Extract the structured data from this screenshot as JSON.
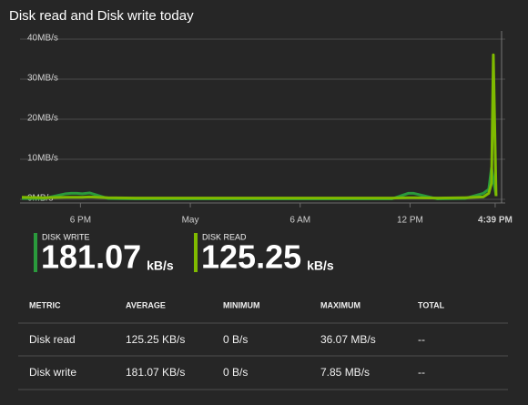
{
  "chart_data": {
    "type": "line",
    "title": "Disk read and Disk write today",
    "x": [
      14.8,
      16,
      17.2,
      17.5,
      17.8,
      18.1,
      18.5,
      19.5,
      21,
      24,
      27,
      30,
      33,
      35,
      35.9,
      36.2,
      37.5,
      39,
      40,
      40.3,
      40.45,
      40.55,
      40.7
    ],
    "series": [
      {
        "name": "Disk write",
        "color": "#2a9a3c",
        "values": [
          0.2,
          0.2,
          1.4,
          1.5,
          1.5,
          1.4,
          1.6,
          0.2,
          0.1,
          0.1,
          0.1,
          0.1,
          0.1,
          0.1,
          1.5,
          1.5,
          0.1,
          0.2,
          1.5,
          2.5,
          7.85,
          5,
          1
        ]
      },
      {
        "name": "Disk read",
        "color": "#7fba00",
        "values": [
          0.5,
          0.4,
          0.5,
          0.5,
          0.5,
          0.5,
          0.6,
          0.4,
          0.3,
          0.3,
          0.3,
          0.3,
          0.3,
          0.3,
          0.4,
          0.4,
          0.3,
          0.4,
          0.6,
          1.5,
          4,
          36.07,
          0.8
        ]
      }
    ],
    "xlim": [
      14.7,
      41.2
    ],
    "xticks": [
      {
        "value": 18,
        "label": "6 PM"
      },
      {
        "value": 24,
        "label": "May"
      },
      {
        "value": 30,
        "label": "6 AM"
      },
      {
        "value": 36,
        "label": "12 PM"
      },
      {
        "value": 40.65,
        "label": "4:39 PM"
      }
    ],
    "ylim": [
      0,
      40
    ],
    "yticks": [
      {
        "value": 0,
        "label": "0MB/s"
      },
      {
        "value": 10,
        "label": "10MB/s"
      },
      {
        "value": 20,
        "label": "20MB/s"
      },
      {
        "value": 30,
        "label": "30MB/s"
      },
      {
        "value": 40,
        "label": "40MB/s"
      }
    ],
    "grid": true
  },
  "summary": [
    {
      "label": "DISK WRITE",
      "value": "181.07",
      "unit": "kB/s",
      "color": "#2a9a3c"
    },
    {
      "label": "DISK READ",
      "value": "125.25",
      "unit": "kB/s",
      "color": "#7fba00"
    }
  ],
  "table": {
    "header": [
      "METRIC",
      "AVERAGE",
      "MINIMUM",
      "MAXIMUM",
      "TOTAL"
    ],
    "rows": [
      [
        "Disk read",
        "125.25 KB/s",
        "0 B/s",
        "36.07 MB/s",
        "--"
      ],
      [
        "Disk write",
        "181.07 KB/s",
        "0 B/s",
        "7.85 MB/s",
        "--"
      ]
    ]
  }
}
